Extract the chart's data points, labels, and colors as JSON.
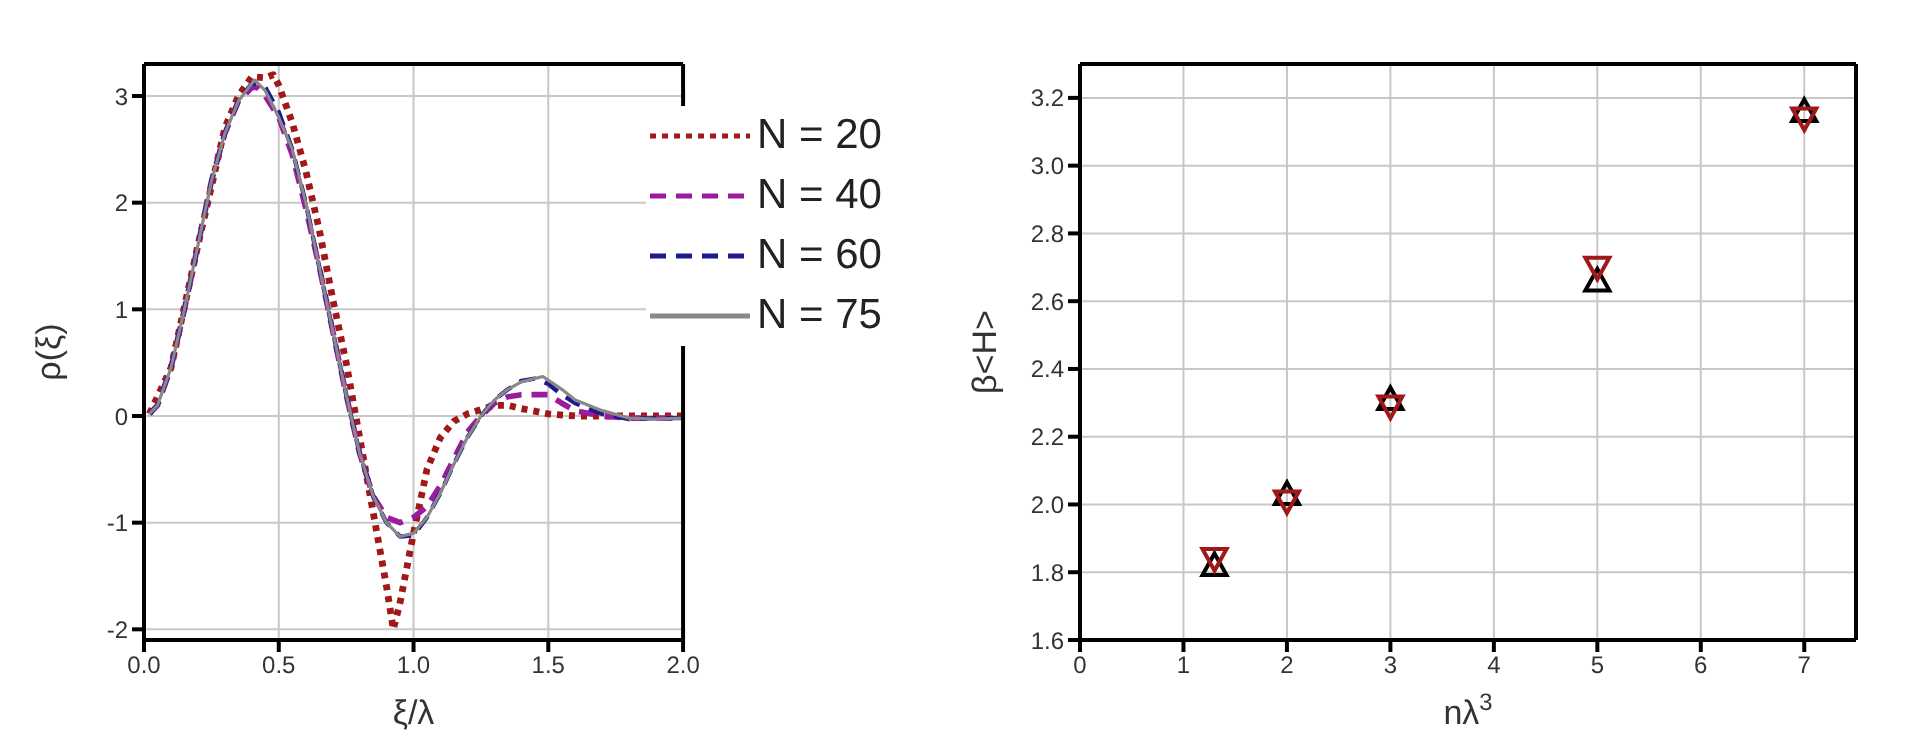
{
  "chart_data": [
    {
      "type": "line",
      "xlabel": "ξ/λ",
      "ylabel": "ρ(ξ)",
      "xlim": [
        0,
        2
      ],
      "xticks": [
        {
          "value": 0,
          "label": "0.0"
        },
        0.5,
        {
          "value": 1,
          "label": "1.0"
        },
        1.5,
        {
          "value": 2,
          "label": "2.0"
        }
      ],
      "ylim": [
        -2.1,
        3.3
      ],
      "yticks": [
        -2,
        -1,
        0,
        1,
        2,
        3
      ],
      "grid": true,
      "legend": "top right",
      "marker": "none",
      "series": [
        {
          "name": "N = 20",
          "color": "#a01818",
          "line_style": "dotted",
          "x": [
            0.02,
            0.1,
            0.2,
            0.3,
            0.35,
            0.4,
            0.45,
            0.48,
            0.5,
            0.55,
            0.6,
            0.65,
            0.7,
            0.75,
            0.8,
            0.85,
            0.9,
            0.925,
            0.95,
            1.0,
            1.05,
            1.1,
            1.15,
            1.2,
            1.3,
            1.35,
            1.4,
            1.5,
            1.6,
            1.8,
            2.0
          ],
          "values": [
            0.02,
            0.45,
            1.6,
            2.7,
            3.0,
            3.18,
            3.17,
            3.2,
            3.1,
            2.75,
            2.3,
            1.75,
            1.1,
            0.5,
            -0.2,
            -0.9,
            -1.6,
            -2.0,
            -1.75,
            -1.1,
            -0.5,
            -0.2,
            -0.05,
            0.02,
            0.1,
            0.1,
            0.07,
            0.02,
            0.0,
            0.0,
            0.0
          ]
        },
        {
          "name": "N = 40",
          "color": "#9a1aa0",
          "line_style": "dashed",
          "x": [
            0.02,
            0.05,
            0.1,
            0.15,
            0.2,
            0.25,
            0.3,
            0.35,
            0.4,
            0.42,
            0.45,
            0.5,
            0.55,
            0.6,
            0.65,
            0.7,
            0.75,
            0.8,
            0.85,
            0.9,
            0.95,
            1.0,
            1.05,
            1.1,
            1.15,
            1.2,
            1.25,
            1.3,
            1.35,
            1.4,
            1.45,
            1.5,
            1.55,
            1.6,
            1.7,
            1.8,
            1.9,
            2.0
          ],
          "values": [
            0.02,
            0.1,
            0.45,
            1.0,
            1.6,
            2.2,
            2.65,
            2.95,
            3.08,
            3.08,
            3.0,
            2.8,
            2.45,
            1.95,
            1.4,
            0.8,
            0.2,
            -0.35,
            -0.75,
            -0.95,
            -1.0,
            -0.95,
            -0.85,
            -0.65,
            -0.4,
            -0.15,
            0.0,
            0.12,
            0.18,
            0.2,
            0.2,
            0.2,
            0.12,
            0.05,
            0.0,
            -0.02,
            -0.02,
            -0.02
          ]
        },
        {
          "name": "N = 60",
          "color": "#1a1a8c",
          "line_style": "dashed",
          "x": [
            0.02,
            0.05,
            0.1,
            0.15,
            0.2,
            0.25,
            0.3,
            0.35,
            0.4,
            0.45,
            0.5,
            0.55,
            0.6,
            0.65,
            0.7,
            0.75,
            0.8,
            0.85,
            0.9,
            0.95,
            1.0,
            1.05,
            1.1,
            1.15,
            1.2,
            1.25,
            1.3,
            1.35,
            1.4,
            1.45,
            1.5,
            1.55,
            1.6,
            1.7,
            1.8,
            1.9,
            2.0
          ],
          "values": [
            0.02,
            0.1,
            0.45,
            1.0,
            1.6,
            2.2,
            2.65,
            2.95,
            3.12,
            3.08,
            2.85,
            2.5,
            2.0,
            1.4,
            0.8,
            0.2,
            -0.35,
            -0.75,
            -1.0,
            -1.13,
            -1.12,
            -0.95,
            -0.72,
            -0.45,
            -0.2,
            0.0,
            0.15,
            0.25,
            0.33,
            0.35,
            0.3,
            0.2,
            0.12,
            0.02,
            -0.03,
            -0.02,
            -0.02
          ]
        },
        {
          "name": "N = 75",
          "color": "#888888",
          "line_style": "solid",
          "x": [
            0.02,
            0.05,
            0.1,
            0.15,
            0.2,
            0.25,
            0.3,
            0.35,
            0.41,
            0.45,
            0.5,
            0.55,
            0.6,
            0.65,
            0.7,
            0.75,
            0.8,
            0.85,
            0.9,
            0.95,
            1.0,
            1.05,
            1.1,
            1.15,
            1.2,
            1.25,
            1.3,
            1.35,
            1.4,
            1.48,
            1.55,
            1.6,
            1.7,
            1.8,
            1.9,
            2.0
          ],
          "values": [
            0.02,
            0.1,
            0.45,
            1.0,
            1.6,
            2.2,
            2.65,
            2.95,
            3.15,
            3.05,
            2.8,
            2.5,
            2.0,
            1.4,
            0.8,
            0.2,
            -0.35,
            -0.75,
            -1.0,
            -1.13,
            -1.1,
            -0.95,
            -0.72,
            -0.45,
            -0.2,
            0.0,
            0.15,
            0.25,
            0.32,
            0.37,
            0.25,
            0.15,
            0.05,
            -0.02,
            -0.03,
            -0.02
          ]
        }
      ]
    },
    {
      "type": "scatter",
      "xlabel": "nλ$^{3}$",
      "ylabel": "β<H>",
      "xlim": [
        0,
        7.5
      ],
      "xticks": [
        0,
        1,
        2,
        3,
        4,
        5,
        6,
        7
      ],
      "ylim": [
        1.6,
        3.3
      ],
      "yticks": [
        1.6,
        1.8,
        {
          "value": 2,
          "label": "2.0"
        },
        2.2,
        2.4,
        2.6,
        2.8,
        {
          "value": 3,
          "label": "3.0"
        },
        3.2
      ],
      "grid": true,
      "legend": false,
      "series": [
        {
          "color": "#000000",
          "marker": "triangle",
          "x": [
            1.3,
            2,
            3,
            5,
            7
          ],
          "values": [
            1.82,
            2.03,
            2.31,
            2.66,
            3.16
          ]
        },
        {
          "color": "#a01818",
          "marker": "triangle-down",
          "x": [
            1.3,
            2,
            3,
            5,
            7
          ],
          "values": [
            1.84,
            2.01,
            2.29,
            2.7,
            3.14
          ]
        }
      ]
    }
  ]
}
